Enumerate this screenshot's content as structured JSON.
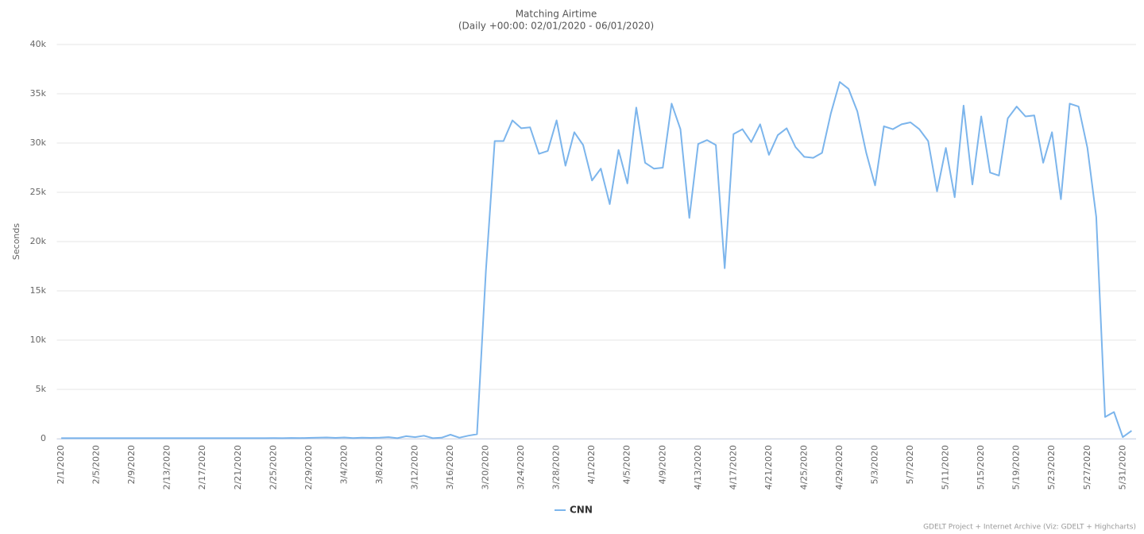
{
  "chart_data": {
    "type": "line",
    "title": "Matching Airtime",
    "subtitle": "(Daily +00:00: 02/01/2020 - 06/01/2020)",
    "y_label": "Seconds",
    "credits": "GDELT Project + Internet Archive (Viz: GDELT + Highcharts)",
    "categories": [
      "2/1/2020",
      null,
      null,
      null,
      "2/5/2020",
      null,
      null,
      null,
      "2/9/2020",
      null,
      null,
      null,
      "2/13/2020",
      null,
      null,
      null,
      "2/17/2020",
      null,
      null,
      null,
      "2/21/2020",
      null,
      null,
      null,
      "2/25/2020",
      null,
      null,
      null,
      "2/29/2020",
      null,
      null,
      null,
      "3/4/2020",
      null,
      null,
      null,
      "3/8/2020",
      null,
      null,
      null,
      "3/12/2020",
      null,
      null,
      null,
      "3/16/2020",
      null,
      null,
      null,
      "3/20/2020",
      null,
      null,
      null,
      "3/24/2020",
      null,
      null,
      null,
      "3/28/2020",
      null,
      null,
      null,
      "4/1/2020",
      null,
      null,
      null,
      "4/5/2020",
      null,
      null,
      null,
      "4/9/2020",
      null,
      null,
      null,
      "4/13/2020",
      null,
      null,
      null,
      "4/17/2020",
      null,
      null,
      null,
      "4/21/2020",
      null,
      null,
      null,
      "4/25/2020",
      null,
      null,
      null,
      "4/29/2020",
      null,
      null,
      null,
      "5/3/2020",
      null,
      null,
      null,
      "5/7/2020",
      null,
      null,
      null,
      "5/11/2020",
      null,
      null,
      null,
      "5/15/2020",
      null,
      null,
      null,
      "5/19/2020",
      null,
      null,
      null,
      "5/23/2020",
      null,
      null,
      null,
      "5/27/2020",
      null,
      null,
      null,
      "5/31/2020",
      null
    ],
    "series": [
      {
        "name": "CNN",
        "color": "#7cb5ec",
        "values": [
          50,
          50,
          50,
          50,
          50,
          50,
          50,
          50,
          50,
          50,
          50,
          50,
          50,
          50,
          50,
          50,
          50,
          50,
          50,
          50,
          50,
          50,
          50,
          50,
          60,
          50,
          70,
          60,
          80,
          100,
          120,
          80,
          120,
          60,
          100,
          80,
          100,
          150,
          50,
          250,
          150,
          300,
          50,
          100,
          400,
          100,
          300,
          450,
          17000,
          30200,
          30200,
          32300,
          31500,
          31600,
          28900,
          29200,
          32300,
          27700,
          31100,
          29800,
          26200,
          27400,
          23800,
          29300,
          25900,
          33600,
          28000,
          27400,
          27500,
          34000,
          31400,
          22400,
          29900,
          30300,
          29800,
          17300,
          30900,
          31400,
          30100,
          31900,
          28800,
          30800,
          31500,
          29600,
          28600,
          28500,
          29000,
          33000,
          36200,
          35500,
          33200,
          29000,
          25700,
          31700,
          31400,
          31900,
          32100,
          31400,
          30200,
          25100,
          29500,
          24500,
          33800,
          25800,
          32700,
          27000,
          26700,
          32500,
          33700,
          32700,
          32800,
          28000,
          31100,
          24300,
          34000,
          33700,
          29500,
          22500,
          2200,
          2700,
          150,
          800
        ]
      }
    ],
    "ylim": [
      0,
      40000
    ],
    "yticks": [
      0,
      {
        "value": 5000,
        "label": "5k"
      },
      {
        "value": 10000,
        "label": "10k"
      },
      {
        "value": 15000,
        "label": "15k"
      },
      {
        "value": 20000,
        "label": "20k"
      },
      {
        "value": 25000,
        "label": "25k"
      },
      {
        "value": 30000,
        "label": "30k"
      },
      {
        "value": 35000,
        "label": "35k"
      },
      {
        "value": 40000,
        "label": "40k"
      }
    ],
    "grid": true,
    "legend": "bottom"
  }
}
